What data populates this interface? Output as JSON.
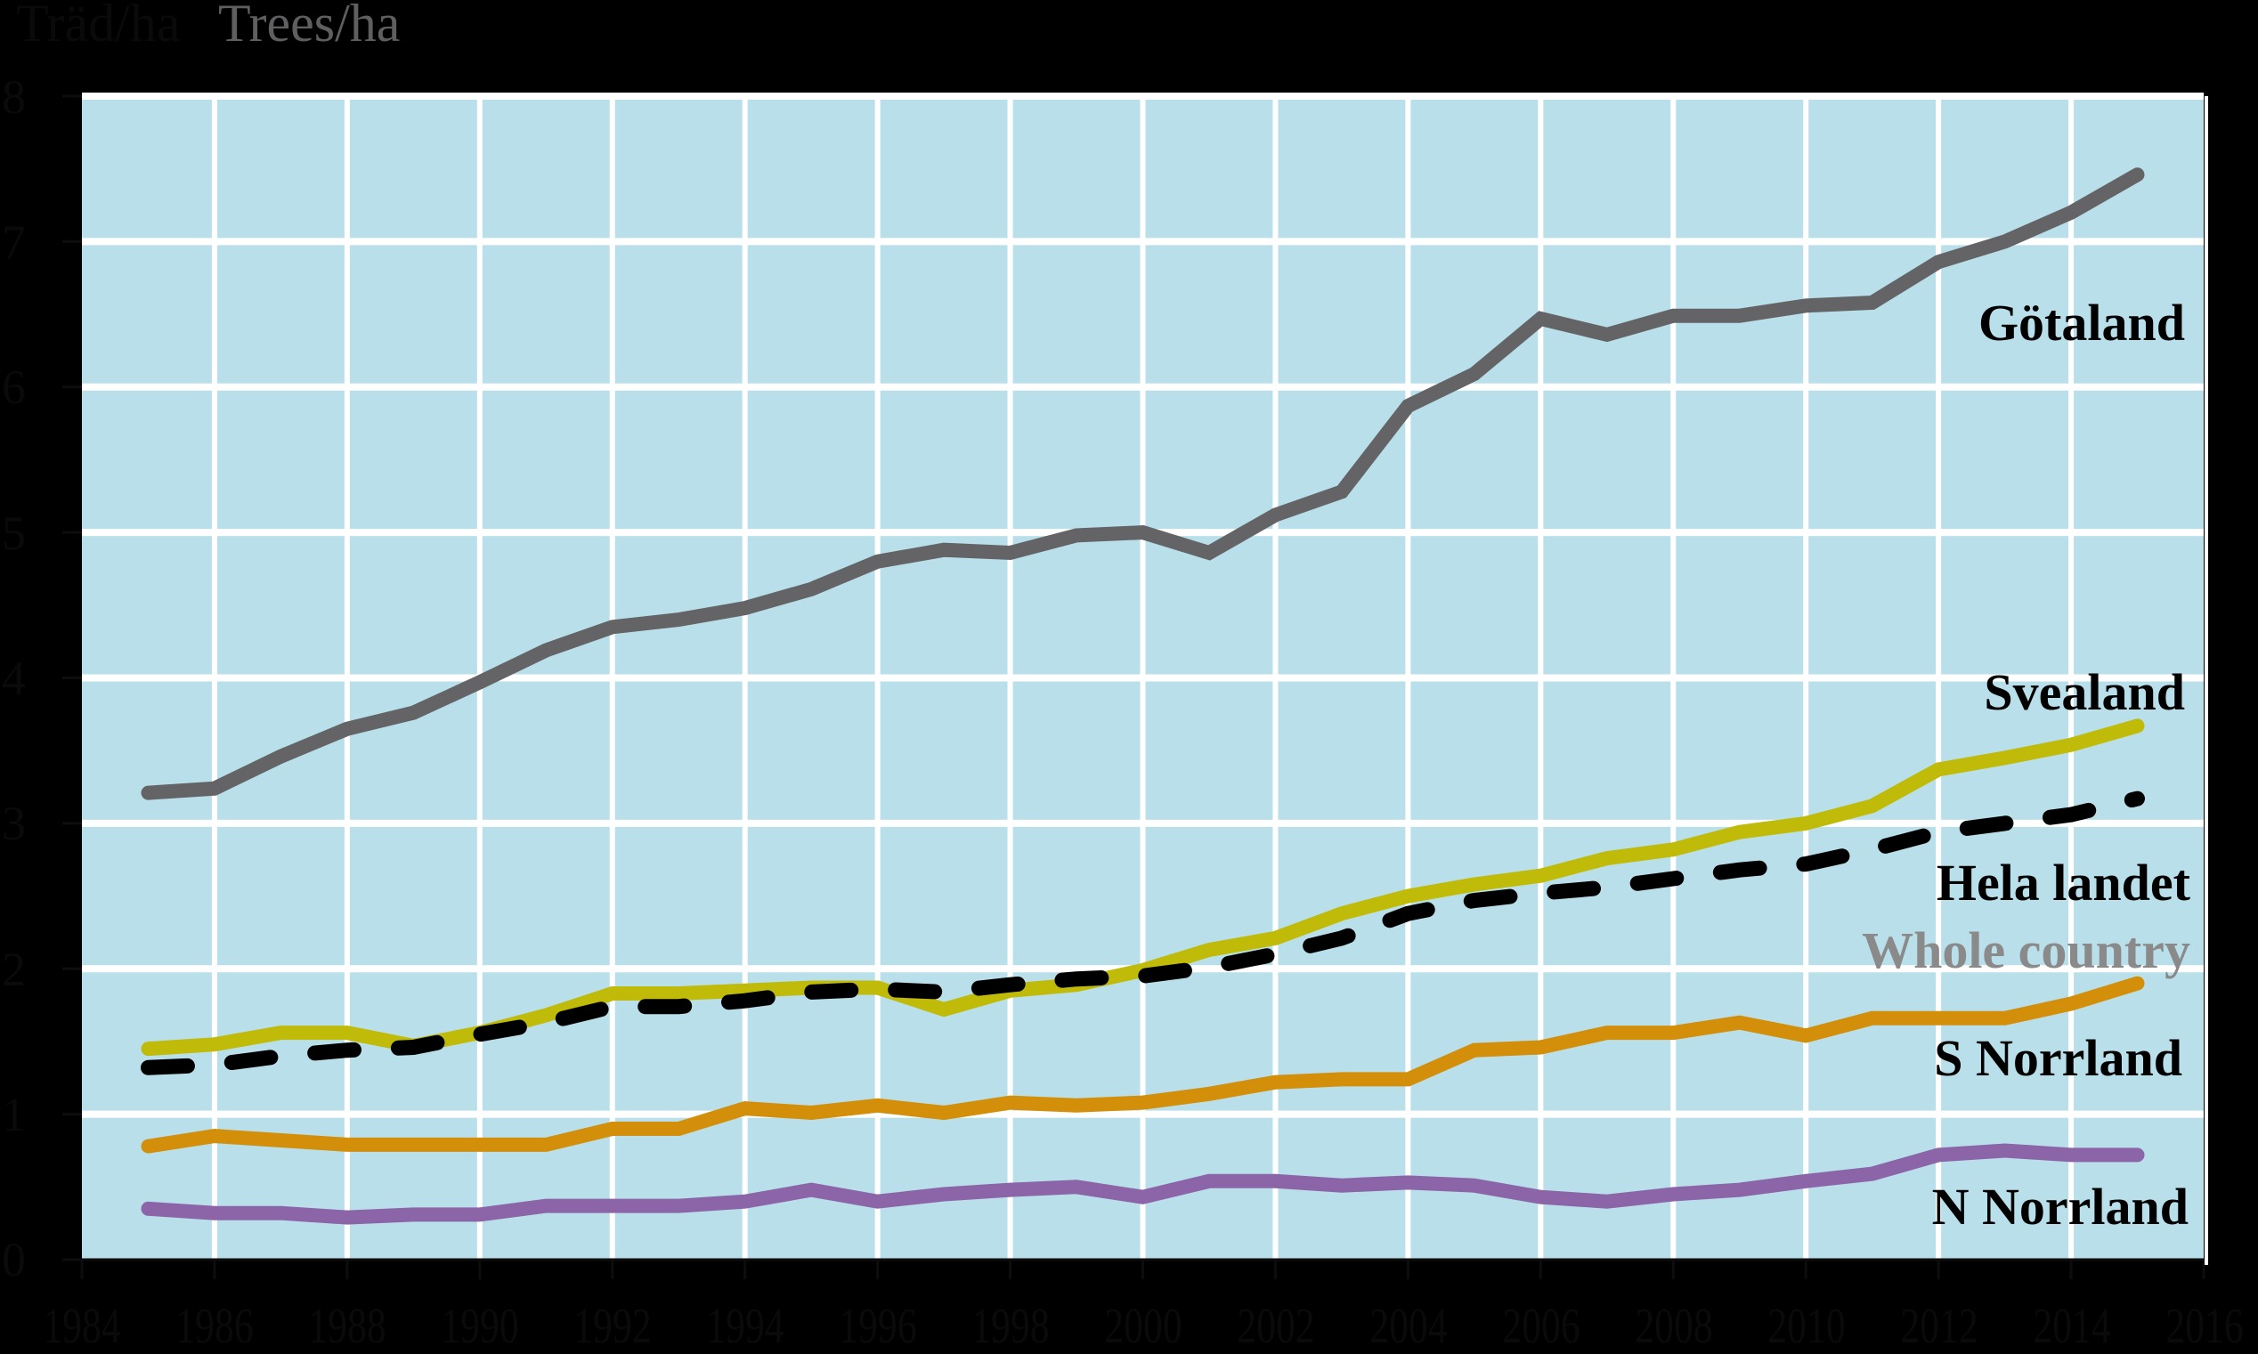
{
  "header": {
    "unit_sv": "Träd/ha",
    "unit_en": "Trees/ha"
  },
  "colors": {
    "background": "#000000",
    "plot_background": "#B9E0EA",
    "grid": "#FFFFFF",
    "Götaland": "#646466",
    "Svealand": "#C0BA09",
    "Hela landet": "#000000",
    "S Norrland": "#D38E0A",
    "N Norrland": "#8B65A7",
    "whole_country_label": "#8A8A8A"
  },
  "labels": {
    "gotaland": "Götaland",
    "svealand": "Svealand",
    "hela_landet": "Hela landet",
    "whole_country": "Whole country",
    "s_norrland": "S Norrland",
    "n_norrland": "N Norrland"
  },
  "axis": {
    "y_ticks": [
      "0",
      "1",
      "2",
      "3",
      "4",
      "5",
      "6",
      "7",
      "8"
    ],
    "x_ticks": [
      "1984",
      "1986",
      "1988",
      "1990",
      "1992",
      "1994",
      "1996",
      "1998",
      "2000",
      "2002",
      "2004",
      "2006",
      "2008",
      "2010",
      "2012",
      "2014",
      "2016"
    ]
  },
  "chart_data": {
    "type": "line",
    "title": "",
    "xlabel": "",
    "ylabel": "Träd/ha  Trees/ha",
    "xlim": [
      1984,
      2016
    ],
    "ylim": [
      0,
      8
    ],
    "grid": true,
    "legend_position": "inline-right",
    "x": [
      1985,
      1986,
      1987,
      1988,
      1989,
      1990,
      1991,
      1992,
      1993,
      1994,
      1995,
      1996,
      1997,
      1998,
      1999,
      2000,
      2001,
      2002,
      2003,
      2004,
      2005,
      2006,
      2007,
      2008,
      2009,
      2010,
      2011,
      2012,
      2013,
      2014,
      2015
    ],
    "series": [
      {
        "name": "Götaland",
        "style": "solid",
        "values": [
          3.21,
          3.24,
          3.46,
          3.65,
          3.76,
          3.97,
          4.19,
          4.35,
          4.4,
          4.48,
          4.61,
          4.8,
          4.88,
          4.86,
          4.98,
          5.0,
          4.86,
          5.12,
          5.28,
          5.87,
          6.09,
          6.47,
          6.36,
          6.49,
          6.49,
          6.56,
          6.58,
          6.86,
          7.0,
          7.2,
          7.46
        ]
      },
      {
        "name": "Svealand",
        "style": "solid",
        "values": [
          1.45,
          1.48,
          1.56,
          1.56,
          1.47,
          1.56,
          1.68,
          1.83,
          1.83,
          1.85,
          1.87,
          1.87,
          1.72,
          1.85,
          1.89,
          1.99,
          2.13,
          2.21,
          2.38,
          2.5,
          2.58,
          2.64,
          2.76,
          2.82,
          2.94,
          3.0,
          3.12,
          3.37,
          3.45,
          3.54,
          3.67
        ]
      },
      {
        "name": "Hela landet",
        "name_en": "Whole country",
        "style": "dashed",
        "values": [
          1.32,
          1.34,
          1.4,
          1.44,
          1.46,
          1.55,
          1.63,
          1.74,
          1.74,
          1.78,
          1.84,
          1.86,
          1.84,
          1.89,
          1.93,
          1.95,
          2.01,
          2.1,
          2.21,
          2.38,
          2.47,
          2.52,
          2.56,
          2.62,
          2.68,
          2.72,
          2.82,
          2.94,
          3.0,
          3.06,
          3.17
        ]
      },
      {
        "name": "S Norrland",
        "style": "solid",
        "values": [
          0.78,
          0.85,
          0.82,
          0.79,
          0.79,
          0.79,
          0.79,
          0.9,
          0.9,
          1.04,
          1.01,
          1.06,
          1.01,
          1.08,
          1.06,
          1.08,
          1.14,
          1.22,
          1.24,
          1.24,
          1.44,
          1.46,
          1.56,
          1.56,
          1.63,
          1.54,
          1.66,
          1.66,
          1.66,
          1.76,
          1.9
        ]
      },
      {
        "name": "N Norrland",
        "style": "solid",
        "values": [
          0.35,
          0.32,
          0.32,
          0.29,
          0.31,
          0.31,
          0.37,
          0.37,
          0.37,
          0.4,
          0.48,
          0.4,
          0.45,
          0.48,
          0.5,
          0.43,
          0.54,
          0.54,
          0.51,
          0.53,
          0.51,
          0.43,
          0.4,
          0.45,
          0.48,
          0.54,
          0.59,
          0.72,
          0.75,
          0.72,
          0.72
        ]
      }
    ]
  }
}
